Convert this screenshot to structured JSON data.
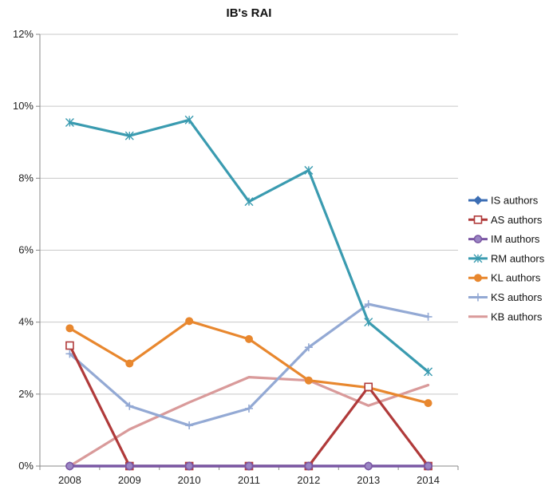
{
  "chart_data": {
    "type": "line",
    "title": "IB's RAI",
    "xlabel": "",
    "ylabel": "",
    "x": [
      "2008",
      "2009",
      "2010",
      "2011",
      "2012",
      "2013",
      "2014"
    ],
    "ylim": [
      0,
      12
    ],
    "yticks": [
      "0%",
      "2%",
      "4%",
      "6%",
      "8%",
      "10%",
      "12%"
    ],
    "grid": true,
    "legend_position": "right",
    "series": [
      {
        "name": "IS authors",
        "color": "#3C6EB4",
        "marker": "diamond",
        "values": [
          0,
          0,
          0,
          0,
          0,
          0,
          0
        ]
      },
      {
        "name": "AS authors",
        "color": "#B03A3A",
        "marker": "square",
        "values": [
          3.35,
          0,
          0,
          0,
          0,
          2.2,
          0
        ]
      },
      {
        "name": "IM authors",
        "color": "#7B56A3",
        "marker": "circle",
        "values": [
          0,
          0,
          0,
          0,
          0,
          0,
          0
        ]
      },
      {
        "name": "RM authors",
        "color": "#3A9BB0",
        "marker": "star",
        "values": [
          9.55,
          9.18,
          9.62,
          7.35,
          8.22,
          4.0,
          2.62
        ]
      },
      {
        "name": "KL authors",
        "color": "#E8872E",
        "marker": "dot",
        "values": [
          3.83,
          2.85,
          4.03,
          3.53,
          2.38,
          2.18,
          1.75
        ]
      },
      {
        "name": "KS authors",
        "color": "#93A9D4",
        "marker": "plus",
        "values": [
          3.12,
          1.67,
          1.13,
          1.6,
          3.3,
          4.5,
          4.15
        ]
      },
      {
        "name": "KB authors",
        "color": "#D99A9A",
        "marker": "none",
        "values": [
          0,
          1.02,
          1.77,
          2.47,
          2.38,
          1.68,
          2.25
        ]
      }
    ]
  }
}
